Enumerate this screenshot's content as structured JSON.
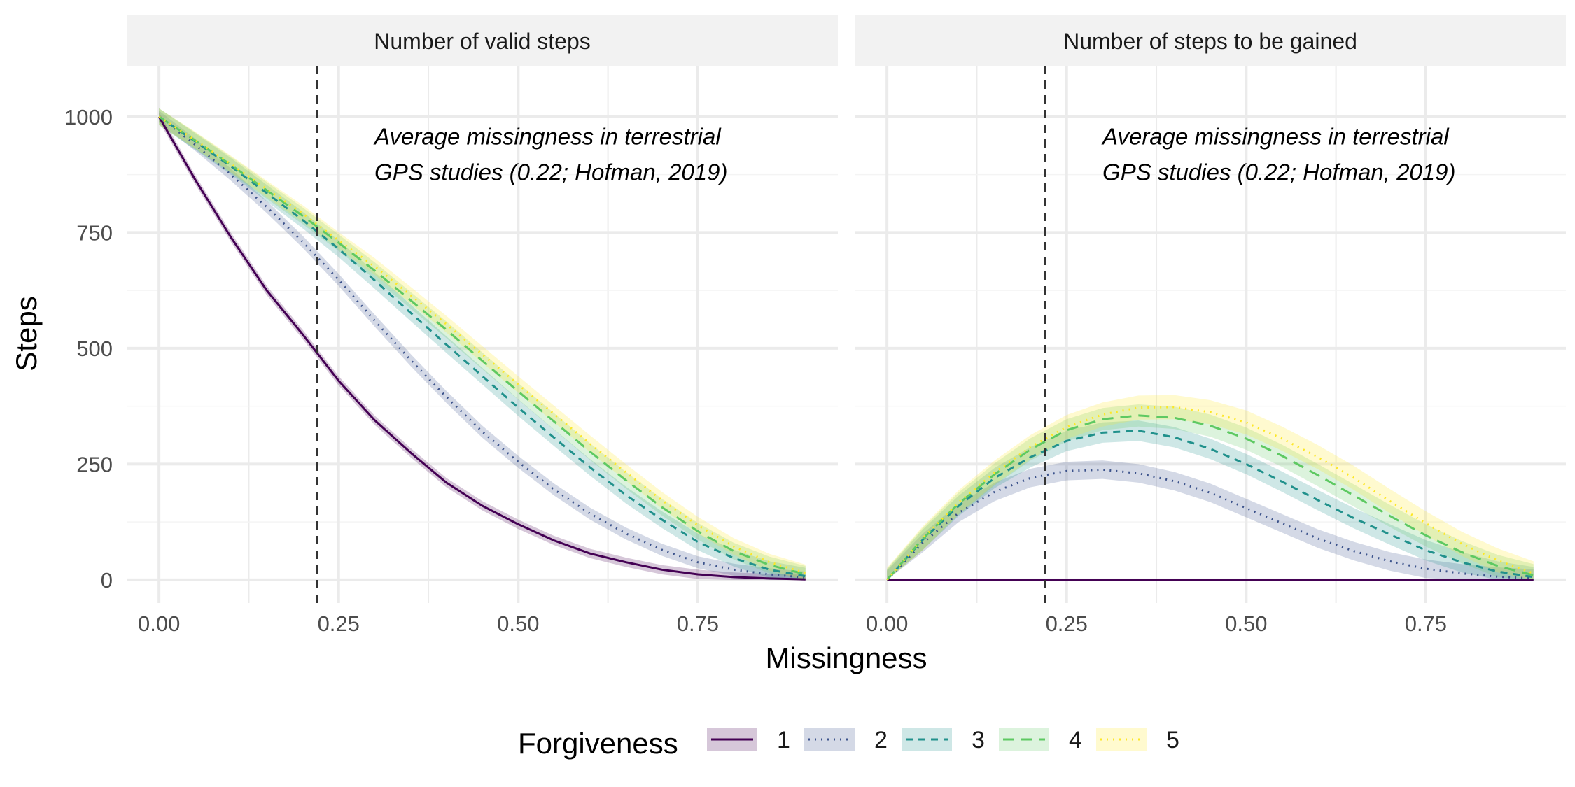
{
  "chart_data": {
    "type": "line",
    "xlabel": "Missingness",
    "ylabel": "Steps",
    "xlim": [
      -0.045,
      0.945
    ],
    "ylim": [
      -50,
      1110
    ],
    "x_ticks": [
      0,
      0.25,
      0.5,
      0.75
    ],
    "x_tick_labels": [
      "0.00",
      "0.25",
      "0.50",
      "0.75"
    ],
    "y_ticks": [
      0,
      250,
      500,
      750,
      1000
    ],
    "y_tick_labels": [
      "0",
      "250",
      "500",
      "750",
      "1000"
    ],
    "grid": true,
    "legend": {
      "title": "Forgiveness",
      "position": "bottom",
      "entries": [
        "1",
        "2",
        "3",
        "4",
        "5"
      ]
    },
    "series_styles": [
      {
        "name": "1",
        "color": "#440154",
        "dash": "solid"
      },
      {
        "name": "2",
        "color": "#3b528b",
        "dash": "dotted"
      },
      {
        "name": "3",
        "color": "#21918c",
        "dash": "dashed"
      },
      {
        "name": "4",
        "color": "#5ec962",
        "dash": "longdash"
      },
      {
        "name": "5",
        "color": "#fde725",
        "dash": "dotted"
      }
    ],
    "reference_line": {
      "x": 0.22,
      "color": "#333333",
      "dash": "dashed"
    },
    "panels": [
      {
        "title": "Number of valid steps",
        "annotation": [
          "Average missingness in terrestrial",
          "GPS studies (0.22; Hofman, 2019)"
        ],
        "annotation_at": {
          "x": 0.3,
          "y": 940
        },
        "x": [
          0,
          0.05,
          0.1,
          0.15,
          0.2,
          0.25,
          0.3,
          0.35,
          0.4,
          0.45,
          0.5,
          0.55,
          0.6,
          0.65,
          0.7,
          0.75,
          0.8,
          0.85,
          0.9
        ],
        "series": [
          {
            "name": "1",
            "values": [
              1000,
              865,
              740,
              625,
              530,
              430,
              345,
              275,
              210,
              160,
              120,
              85,
              57,
              38,
              22,
              12,
              6,
              3,
              1
            ],
            "band": 10
          },
          {
            "name": "2",
            "values": [
              1000,
              940,
              875,
              805,
              730,
              648,
              560,
              475,
              395,
              320,
              255,
              195,
              143,
              100,
              65,
              38,
              22,
              12,
              5
            ],
            "band": 13
          },
          {
            "name": "3",
            "values": [
              1000,
              947,
              893,
              835,
              777,
              715,
              647,
              577,
              508,
              440,
              372,
              307,
              243,
              183,
              130,
              82,
              47,
              22,
              8
            ],
            "band": 18
          },
          {
            "name": "4",
            "values": [
              1000,
              949,
              896,
              841,
              786,
              728,
              668,
              604,
              540,
              473,
              407,
              342,
              277,
              215,
              157,
              105,
              62,
              32,
              12
            ],
            "band": 18
          },
          {
            "name": "5",
            "values": [
              1000,
              950,
              898,
              844,
              791,
              733,
              677,
              615,
              552,
              487,
              422,
              358,
              294,
              232,
              172,
              118,
              72,
              38,
              15
            ],
            "band": 18
          }
        ]
      },
      {
        "title": "Number of steps to be gained",
        "annotation": [
          "Average missingness in terrestrial",
          "GPS studies (0.22; Hofman, 2019)"
        ],
        "annotation_at": {
          "x": 0.3,
          "y": 940
        },
        "x": [
          0,
          0.05,
          0.1,
          0.15,
          0.2,
          0.25,
          0.3,
          0.35,
          0.4,
          0.45,
          0.5,
          0.55,
          0.6,
          0.65,
          0.7,
          0.75,
          0.8,
          0.85,
          0.9
        ],
        "series": [
          {
            "name": "1",
            "values": [
              0,
              0,
              0,
              0,
              0,
              0,
              0,
              0,
              0,
              0,
              0,
              0,
              0,
              0,
              0,
              0,
              0,
              0,
              0
            ],
            "band": 0
          },
          {
            "name": "2",
            "values": [
              0,
              80,
              145,
              190,
              220,
              235,
              238,
              230,
              213,
              188,
              155,
              122,
              89,
              62,
              40,
              24,
              14,
              7,
              3
            ],
            "band": 20
          },
          {
            "name": "3",
            "values": [
              0,
              87,
              160,
              220,
              265,
              300,
              318,
              322,
              308,
              283,
              250,
              212,
              172,
              133,
              98,
              64,
              38,
              18,
              6
            ],
            "band": 22
          },
          {
            "name": "4",
            "values": [
              0,
              89,
              165,
              228,
              282,
              323,
              347,
              355,
              350,
              333,
              305,
              268,
              226,
              182,
              138,
              96,
              60,
              30,
              10
            ],
            "band": 24
          },
          {
            "name": "5",
            "values": [
              0,
              90,
              168,
              232,
              287,
              330,
              357,
              372,
              373,
              362,
              340,
              305,
              265,
              220,
              170,
              122,
              78,
              42,
              14
            ],
            "band": 26
          }
        ]
      }
    ]
  }
}
